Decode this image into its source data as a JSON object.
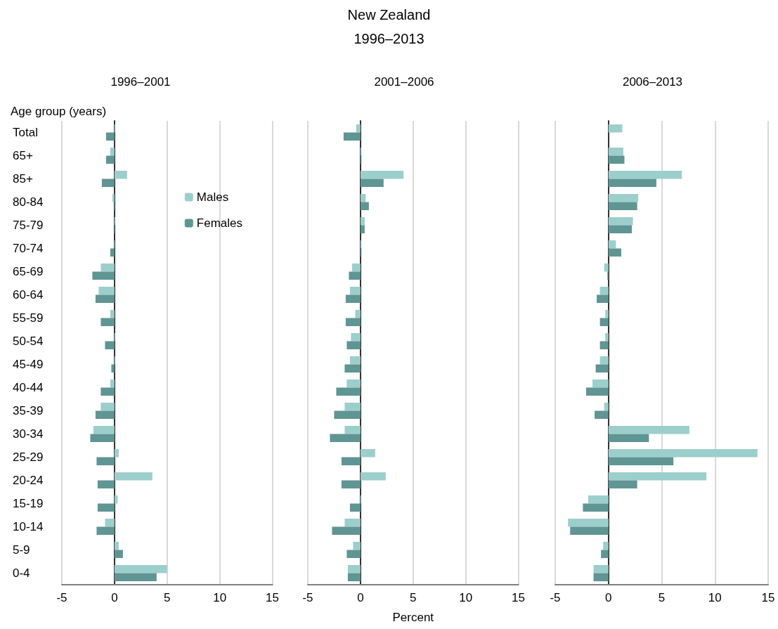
{
  "chart_data": [
    {
      "type": "bar",
      "orientation": "horizontal",
      "title": "1996–2001",
      "ylabel": "Age group (years)",
      "annotations": [
        "New Zealand",
        "1996–2013"
      ],
      "categories": [
        "Total",
        "65+",
        "85+",
        "80-84",
        "75-79",
        "70-74",
        "65-69",
        "60-64",
        "55-59",
        "50-54",
        "45-49",
        "40-44",
        "35-39",
        "30-34",
        "25-29",
        "20-24",
        "15-19",
        "10-14",
        "5-9",
        "0-4"
      ],
      "series": [
        {
          "name": "Males",
          "color": "#9ccfcc",
          "values": [
            0.1,
            -0.4,
            1.2,
            -0.2,
            0.1,
            -0.1,
            -1.3,
            -1.5,
            -0.4,
            0.1,
            0.1,
            -0.4,
            -1.3,
            -2.0,
            0.4,
            3.6,
            0.3,
            -0.9,
            0.4,
            5.0
          ]
        },
        {
          "name": "Females",
          "color": "#5f9593",
          "values": [
            -0.8,
            -0.8,
            -1.2,
            0.1,
            0.1,
            -0.4,
            -2.1,
            -1.8,
            -1.3,
            -0.9,
            -0.3,
            -1.3,
            -1.8,
            -2.3,
            -1.7,
            -1.6,
            -1.6,
            -1.7,
            0.8,
            4.0
          ]
        }
      ],
      "xlim": [
        -5,
        15
      ],
      "xticks": [
        -5,
        0,
        5,
        10,
        15
      ],
      "grid": "x",
      "legend": "top right"
    },
    {
      "type": "bar",
      "orientation": "horizontal",
      "title": "2001–2006",
      "xlabel": "Percent",
      "categories": [
        null,
        null,
        null,
        null,
        null,
        null,
        null,
        null,
        null,
        null,
        null,
        null,
        null,
        null,
        null,
        null,
        null,
        null,
        null,
        null
      ],
      "series": [
        {
          "color": "#9ccfcc",
          "values": [
            -0.4,
            0.1,
            4.1,
            0.5,
            0.4,
            0.1,
            -0.8,
            -1.0,
            -0.5,
            -0.9,
            -1.0,
            -1.3,
            -1.5,
            -1.5,
            1.4,
            2.4,
            0.1,
            -1.5,
            -0.7,
            -1.2
          ]
        },
        {
          "color": "#5f9593",
          "values": [
            -1.6,
            0.1,
            2.2,
            0.8,
            0.4,
            0.1,
            -1.1,
            -1.4,
            -1.4,
            -1.3,
            -1.5,
            -2.3,
            -2.5,
            -2.9,
            -1.8,
            -1.8,
            -1.0,
            -2.7,
            -1.3,
            -1.2
          ]
        }
      ],
      "xlim": [
        -5,
        15
      ],
      "xticks": [
        -5,
        0,
        5,
        10,
        15
      ],
      "grid": "x",
      "tick_labels": "x"
    },
    {
      "type": "bar",
      "orientation": "horizontal",
      "title": "2006–2013",
      "categories": [
        null,
        null,
        null,
        null,
        null,
        null,
        null,
        null,
        null,
        null,
        null,
        null,
        null,
        null,
        null,
        null,
        null,
        null,
        null,
        null
      ],
      "series": [
        {
          "color": "#9ccfcc",
          "values": [
            1.3,
            1.4,
            6.9,
            2.8,
            2.3,
            0.7,
            -0.4,
            -0.8,
            -0.3,
            -0.3,
            -0.8,
            -1.5,
            -0.4,
            7.6,
            14.0,
            9.2,
            -1.9,
            -3.8,
            -0.5,
            -1.4
          ]
        },
        {
          "color": "#5f9593",
          "values": [
            0,
            1.5,
            4.5,
            2.7,
            2.2,
            1.2,
            -0.1,
            -1.1,
            -0.8,
            -0.8,
            -1.2,
            -2.1,
            -1.3,
            3.8,
            6.1,
            2.7,
            -2.4,
            -3.6,
            -0.7,
            -1.4
          ]
        }
      ],
      "xlim": [
        -5,
        15
      ],
      "xticks": [
        -5,
        0,
        5,
        10,
        15
      ],
      "grid": "x",
      "tick_labels": "x"
    }
  ]
}
